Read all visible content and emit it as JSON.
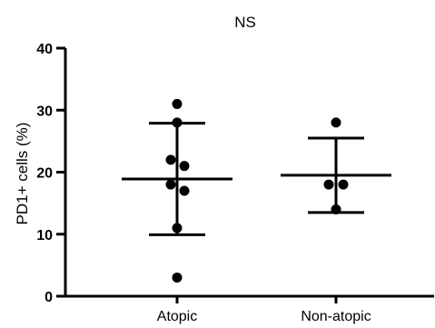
{
  "chart_data": {
    "type": "scatter",
    "title": "NS",
    "ylabel": "PD1+ cells (%)",
    "xlabel": "",
    "ylim": [
      0,
      40
    ],
    "yticks": [
      0,
      10,
      20,
      30,
      40
    ],
    "y_tick_labels": [
      "0",
      "10",
      "20",
      "30",
      "40"
    ],
    "categories": [
      "Atopic",
      "Non-atopic"
    ],
    "groups": [
      {
        "category": "Atopic",
        "values": [
          31,
          28,
          22,
          21,
          18,
          17,
          11,
          3
        ],
        "mean": 18.9,
        "error_upper": 27.9,
        "error_lower": 9.9
      },
      {
        "category": "Non-atopic",
        "values": [
          28,
          18,
          18,
          14
        ],
        "mean": 19.5,
        "error_upper": 25.5,
        "error_lower": 13.5
      }
    ],
    "grid": false,
    "legend": "none",
    "colors": {
      "points": "#000000",
      "lines": "#000000"
    }
  }
}
